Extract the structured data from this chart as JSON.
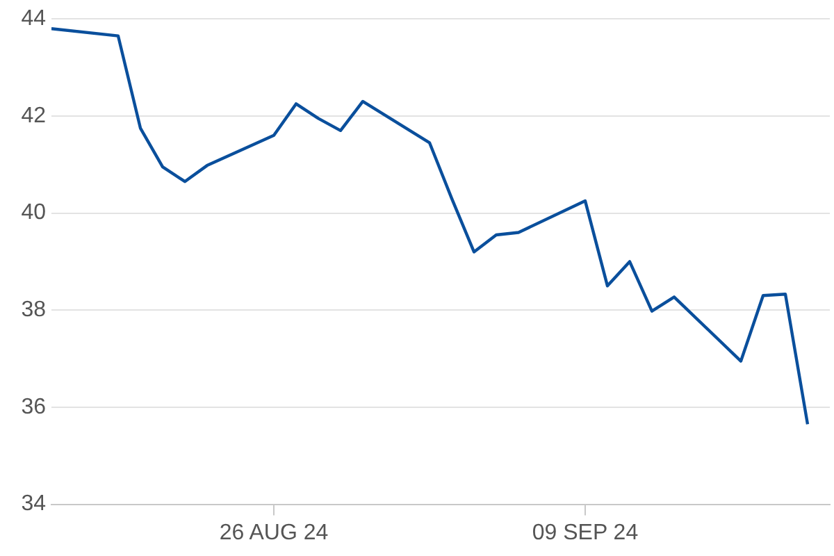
{
  "chart_data": {
    "type": "line",
    "x": [
      "2024-08-16",
      "2024-08-19",
      "2024-08-20",
      "2024-08-21",
      "2024-08-22",
      "2024-08-23",
      "2024-08-26",
      "2024-08-27",
      "2024-08-28",
      "2024-08-29",
      "2024-08-30",
      "2024-09-02",
      "2024-09-03",
      "2024-09-04",
      "2024-09-05",
      "2024-09-06",
      "2024-09-09",
      "2024-09-10",
      "2024-09-11",
      "2024-09-12",
      "2024-09-13",
      "2024-09-16",
      "2024-09-17",
      "2024-09-18",
      "2024-09-19"
    ],
    "series": [
      {
        "color": "#0a4f9c",
        "values": [
          43.8,
          43.65,
          41.75,
          40.95,
          40.65,
          40.98,
          41.6,
          42.25,
          41.95,
          41.7,
          42.3,
          41.45,
          40.3,
          39.2,
          39.55,
          39.6,
          40.25,
          38.5,
          39.0,
          37.98,
          38.27,
          36.95,
          38.3,
          38.33,
          35.65
        ]
      }
    ],
    "xlim": [
      "2024-08-16",
      "2024-09-20"
    ],
    "xticks": [
      {
        "value": "2024-08-26",
        "label": "26 AUG 24"
      },
      {
        "value": "2024-09-09",
        "label": "09 SEP 24"
      }
    ],
    "ylim": [
      34,
      44
    ],
    "yticks": [
      34,
      36,
      38,
      40,
      42,
      44
    ],
    "grid": "y",
    "legend": false,
    "marker": "none",
    "line_style": "solid"
  }
}
